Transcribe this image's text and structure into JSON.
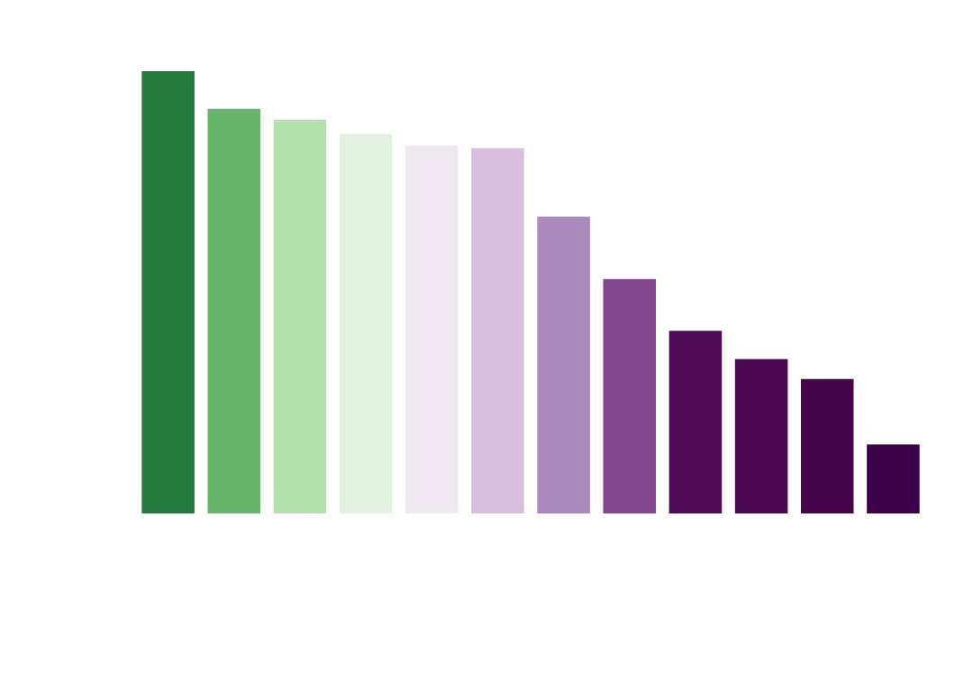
{
  "chart_data": {
    "type": "bar",
    "categories": [
      "",
      "",
      "",
      "",
      "",
      "",
      "",
      "",
      "",
      "",
      "",
      ""
    ],
    "values": [
      100,
      91.5,
      89,
      85.8,
      83.2,
      82.6,
      67.1,
      53,
      41.3,
      34.9,
      30.4,
      15.6
    ],
    "colors": [
      "#217b3c",
      "#67b56b",
      "#b3e1ab",
      "#e2f2e0",
      "#efe8f0",
      "#d7bedc",
      "#ac89bd",
      "#83468f",
      "#4f0b55",
      "#4d0853",
      "#450548",
      "#3f004a"
    ],
    "ylim": [
      0,
      100
    ],
    "grid": false,
    "axes_visible": false
  }
}
